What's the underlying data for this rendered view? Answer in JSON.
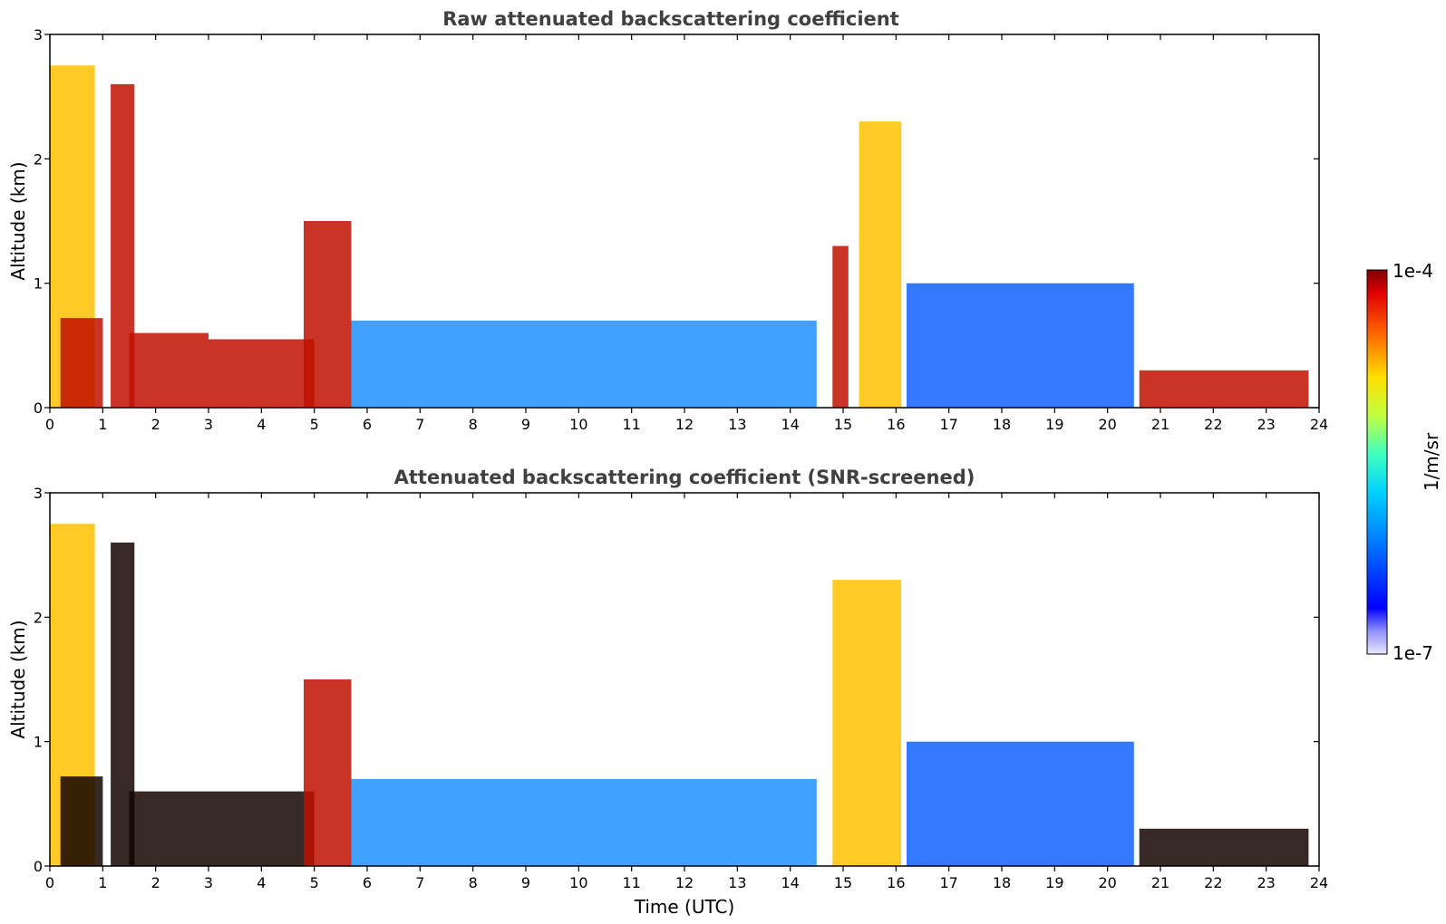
{
  "chart_data": [
    {
      "type": "heatmap",
      "title": "Raw attenuated backscattering coefficient",
      "xlabel": "",
      "ylabel": "Altitude (km)",
      "xlim": [
        0,
        24
      ],
      "ylim": [
        0,
        3
      ],
      "x_ticks": [
        "0",
        "1",
        "2",
        "3",
        "4",
        "5",
        "6",
        "7",
        "8",
        "9",
        "10",
        "11",
        "12",
        "13",
        "14",
        "15",
        "16",
        "17",
        "18",
        "19",
        "20",
        "21",
        "22",
        "23",
        "24"
      ],
      "y_ticks": [
        "0",
        "1",
        "2",
        "3"
      ],
      "features": [
        {
          "from": 0.0,
          "to": 0.85,
          "top": 2.75,
          "level": "high"
        },
        {
          "from": 0.2,
          "to": 1.0,
          "top": 0.72,
          "level": "very-high"
        },
        {
          "from": 1.15,
          "to": 1.6,
          "top": 2.6,
          "level": "very-high"
        },
        {
          "from": 1.5,
          "to": 3.0,
          "top": 0.6,
          "level": "very-high"
        },
        {
          "from": 3.0,
          "to": 5.0,
          "top": 0.55,
          "level": "very-high"
        },
        {
          "from": 4.8,
          "to": 5.7,
          "top": 1.5,
          "level": "very-high"
        },
        {
          "from": 5.7,
          "to": 14.5,
          "top": 0.7,
          "level": "medium"
        },
        {
          "from": 14.8,
          "to": 15.1,
          "top": 1.3,
          "level": "very-high"
        },
        {
          "from": 15.3,
          "to": 16.1,
          "top": 2.3,
          "level": "high"
        },
        {
          "from": 16.2,
          "to": 20.5,
          "top": 1.0,
          "level": "low"
        },
        {
          "from": 20.6,
          "to": 23.8,
          "top": 0.3,
          "level": "very-high"
        }
      ]
    },
    {
      "type": "heatmap",
      "title": "Attenuated backscattering coefficient (SNR-screened)",
      "xlabel": "Time (UTC)",
      "ylabel": "Altitude (km)",
      "xlim": [
        0,
        24
      ],
      "ylim": [
        0,
        3
      ],
      "x_ticks": [
        "0",
        "1",
        "2",
        "3",
        "4",
        "5",
        "6",
        "7",
        "8",
        "9",
        "10",
        "11",
        "12",
        "13",
        "14",
        "15",
        "16",
        "17",
        "18",
        "19",
        "20",
        "21",
        "22",
        "23",
        "24"
      ],
      "y_ticks": [
        "0",
        "1",
        "2",
        "3"
      ],
      "features": [
        {
          "from": 0.0,
          "to": 0.85,
          "top": 2.75,
          "level": "high"
        },
        {
          "from": 0.2,
          "to": 1.0,
          "top": 0.72,
          "level": "saturated"
        },
        {
          "from": 1.15,
          "to": 1.6,
          "top": 2.6,
          "level": "saturated"
        },
        {
          "from": 1.5,
          "to": 5.0,
          "top": 0.6,
          "level": "saturated"
        },
        {
          "from": 4.8,
          "to": 5.7,
          "top": 1.5,
          "level": "very-high"
        },
        {
          "from": 5.7,
          "to": 14.5,
          "top": 0.7,
          "level": "medium"
        },
        {
          "from": 14.8,
          "to": 16.1,
          "top": 2.3,
          "level": "high"
        },
        {
          "from": 16.2,
          "to": 20.5,
          "top": 1.0,
          "level": "low"
        },
        {
          "from": 20.6,
          "to": 23.8,
          "top": 0.3,
          "level": "saturated"
        }
      ]
    }
  ],
  "colorbar": {
    "label": "1/m/sr",
    "max_label": "1e-4",
    "min_label": "1e-7",
    "range": [
      1e-07,
      0.0001
    ],
    "scale": "log",
    "colormap": "jet"
  }
}
